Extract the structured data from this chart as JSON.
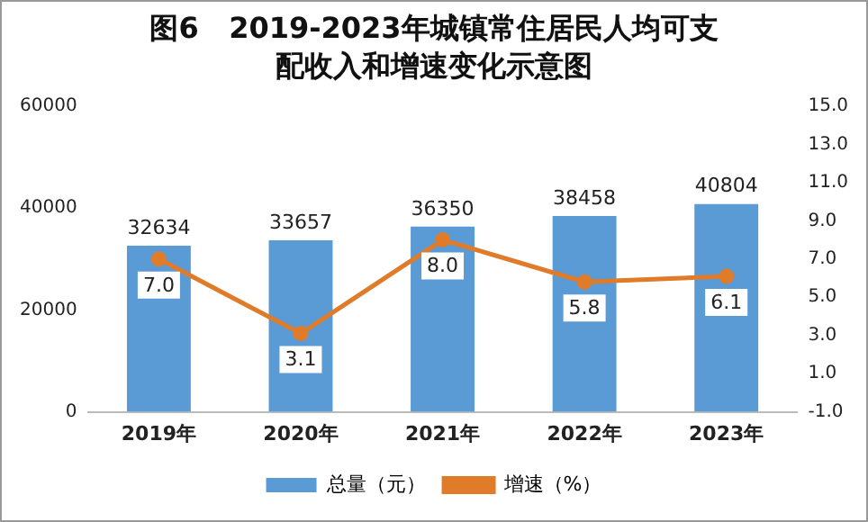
{
  "chart_data": {
    "type": "bar",
    "title": "图6   2019-2023年城镇常住居民人均可支配收入和增速变化示意图",
    "categories": [
      "2019年",
      "2020年",
      "2021年",
      "2022年",
      "2023年"
    ],
    "series": [
      {
        "name": "总量（元）",
        "color": "#5b9bd5",
        "values": [
          32634,
          33657,
          36350,
          38458,
          40804
        ]
      },
      {
        "name": "增速（%）",
        "type": "line",
        "axis": "y2",
        "color": "#e07b2a",
        "values": [
          7.0,
          3.1,
          8.0,
          5.8,
          6.1
        ],
        "value_labels": [
          "7.0",
          "3.1",
          "8.0",
          "5.8",
          "6.1"
        ],
        "marker": "circle"
      }
    ],
    "ylim": [
      0,
      60000
    ],
    "yticks": [
      0,
      20000,
      40000,
      60000
    ],
    "y2lim": [
      -1,
      15
    ],
    "y2ticks": [
      {
        "value": -1,
        "label": "-1.0"
      },
      {
        "value": 1,
        "label": "1.0"
      },
      {
        "value": 3,
        "label": "3.0"
      },
      {
        "value": 5,
        "label": "5.0"
      },
      {
        "value": 7,
        "label": "7.0"
      },
      {
        "value": 9,
        "label": "9.0"
      },
      {
        "value": 11,
        "label": "11.0"
      },
      {
        "value": 13,
        "label": "13.0"
      },
      {
        "value": 15,
        "label": "15.0"
      }
    ],
    "data_labels": true,
    "legend": "bottom",
    "grid": false
  }
}
